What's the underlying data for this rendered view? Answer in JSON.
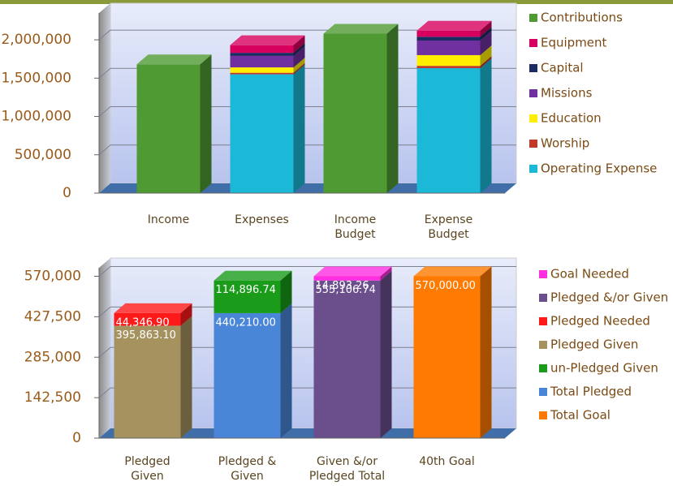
{
  "chart_data": [
    {
      "type": "bar",
      "stacked": true,
      "grid": true,
      "legend": "right",
      "categories": [
        "Income",
        "Expenses",
        "Income\nBudget",
        "Expense\nBudget"
      ],
      "ylim": [
        0,
        2350000
      ],
      "yticks": [
        0,
        {
          "value": 500000,
          "label": "500,000"
        },
        {
          "value": 1000000,
          "label": "1,000,000"
        },
        {
          "value": 1500000,
          "label": "1,500,000"
        },
        {
          "value": 2000000,
          "label": "2,000,000"
        }
      ],
      "series": [
        {
          "name": "Contributions",
          "color": "#4f9a33",
          "values": [
            1680000,
            null,
            2080000,
            null
          ]
        },
        {
          "name": "Equipment",
          "color": "#d8005e",
          "values": [
            null,
            100000,
            null,
            80000
          ]
        },
        {
          "name": "Capital",
          "color": "#1c2b62",
          "values": [
            null,
            40000,
            null,
            50000
          ]
        },
        {
          "name": "Missions",
          "color": "#7030a0",
          "values": [
            null,
            150000,
            null,
            190000
          ]
        },
        {
          "name": "Education",
          "color": "#ffee00",
          "values": [
            null,
            70000,
            null,
            140000
          ]
        },
        {
          "name": "Worship",
          "color": "#c0392b",
          "values": [
            null,
            20000,
            null,
            30000
          ]
        },
        {
          "name": "Operating Expense",
          "color": "#1cb8d8",
          "values": [
            null,
            1550000,
            null,
            1630000
          ]
        }
      ]
    },
    {
      "type": "bar",
      "stacked": true,
      "grid": true,
      "legend": "right",
      "categories": [
        "Pledged\nGiven",
        "Pledged &\nGiven",
        "Given &/or\nPledged Total",
        "40th Goal"
      ],
      "ylim": [
        0,
        600000
      ],
      "yticks": [
        0,
        {
          "value": 142500,
          "label": "142,500"
        },
        {
          "value": 285000,
          "label": "285,000"
        },
        {
          "value": 427500,
          "label": "427,500"
        },
        {
          "value": 570000,
          "label": "570,000"
        }
      ],
      "series": [
        {
          "name": "Goal Needed",
          "color": "#ff2ee0",
          "values": [
            null,
            null,
            14893.26,
            null
          ],
          "value_labels": [
            null,
            null,
            "14,893.26",
            null
          ]
        },
        {
          "name": "Pledged &/or Given",
          "color": "#6a4f8c",
          "values": [
            null,
            null,
            555106.74,
            null
          ],
          "value_labels": [
            null,
            null,
            "555,106.74",
            null
          ]
        },
        {
          "name": "Pledged Needed",
          "color": "#ff1a1a",
          "values": [
            44346.9,
            null,
            null,
            null
          ],
          "value_labels": [
            "44,346.90",
            null,
            null,
            null
          ]
        },
        {
          "name": "Pledged Given",
          "color": "#a5925f",
          "values": [
            395863.1,
            null,
            null,
            null
          ],
          "value_labels": [
            "395,863.10",
            null,
            null,
            null
          ]
        },
        {
          "name": "un-Pledged Given",
          "color": "#1a9c1a",
          "values": [
            null,
            114896.74,
            null,
            null
          ],
          "value_labels": [
            null,
            "114,896.74",
            null,
            null
          ]
        },
        {
          "name": "Total Pledged",
          "color": "#4a86d8",
          "values": [
            null,
            440210,
            null,
            null
          ],
          "value_labels": [
            null,
            "440,210.00",
            null,
            null
          ]
        },
        {
          "name": "Total Goal",
          "color": "#ff7a00",
          "values": [
            null,
            null,
            null,
            570000
          ],
          "value_labels": [
            null,
            null,
            null,
            "570,000.00"
          ]
        }
      ]
    }
  ]
}
